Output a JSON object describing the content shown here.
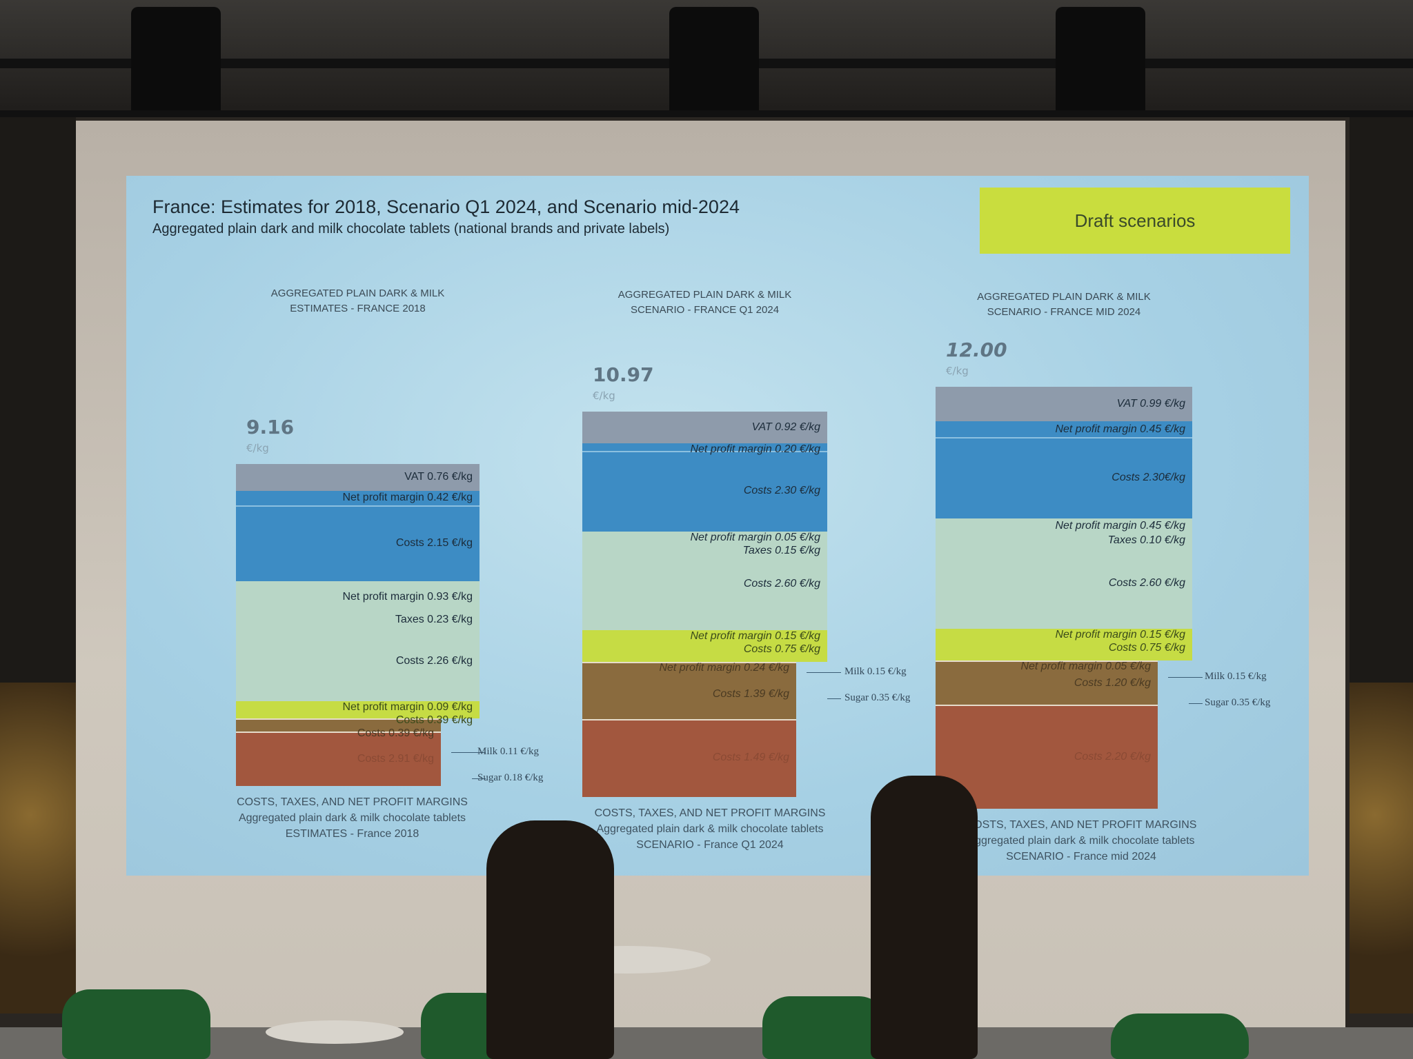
{
  "slide": {
    "title": "France: Estimates for 2018, Scenario Q1 2024, and Scenario mid-2024",
    "subtitle": "Aggregated plain dark and milk chocolate tablets (national brands and private labels)",
    "badge": "Draft scenarios",
    "colors": {
      "background": "#a8d2e6",
      "badge": "#c9dd3e",
      "vat": "#8e9bab",
      "retail": "#3d8cc4",
      "manufacturer": "#b8d6c6",
      "grinder": "#c6dc44",
      "trader": "#8a6b3e",
      "farm": "#a2573e"
    }
  },
  "chart_data": {
    "type": "bar",
    "stacked": true,
    "unit": "€/kg",
    "bars": [
      {
        "title_lines": [
          "AGGREGATED PLAIN DARK & MILK",
          "ESTIMATES - FRANCE 2018"
        ],
        "total": "9.16",
        "total_value": 9.16,
        "unit": "€/kg",
        "caption_lines": [
          "COSTS, TAXES, AND NET PROFIT MARGINS",
          "Aggregated plain dark & milk chocolate tablets",
          "ESTIMATES - France 2018"
        ],
        "groups": [
          {
            "color": "vat",
            "segments": [
              {
                "label": "VAT 0.76 €/kg",
                "value": 0.76
              }
            ]
          },
          {
            "color": "retail",
            "segments": [
              {
                "label": "Net profit margin 0.42 €/kg",
                "value": 0.42
              },
              {
                "label": "Costs 2.15 €/kg",
                "value": 2.15
              }
            ]
          },
          {
            "color": "manufacturer",
            "segments": [
              {
                "label": "Net profit margin 0.93 €/kg",
                "value": 0.93
              },
              {
                "label": "Taxes 0.23 €/kg",
                "value": 0.23
              },
              {
                "label": "Costs 2.26 €/kg",
                "value": 2.26
              }
            ]
          },
          {
            "color": "grinder",
            "segments": [
              {
                "label": "Net profit margin 0.09 €/kg",
                "value": 0.09
              },
              {
                "label": "Costs 0.39 €/kg",
                "value": 0.39
              }
            ]
          },
          {
            "color": "trader",
            "segments": [
              {
                "label": "Costs 0.39 €/kg",
                "value": 0.39
              }
            ]
          },
          {
            "color": "farm",
            "segments": [
              {
                "label": "Costs 2.91 €/kg",
                "value": null
              }
            ]
          }
        ],
        "annotations": [
          "Milk 0.11 €/kg",
          "Sugar 0.18 €/kg"
        ]
      },
      {
        "title_lines": [
          "AGGREGATED PLAIN DARK & MILK",
          "SCENARIO - FRANCE Q1 2024"
        ],
        "total": "10.97",
        "total_value": 10.97,
        "unit": "€/kg",
        "caption_lines": [
          "COSTS, TAXES, AND NET PROFIT MARGINS",
          "Aggregated plain dark & milk chocolate tablets",
          "SCENARIO - France Q1 2024"
        ],
        "groups": [
          {
            "color": "vat",
            "segments": [
              {
                "label": "VAT 0.92 €/kg",
                "value": 0.92
              }
            ]
          },
          {
            "color": "retail",
            "segments": [
              {
                "label": "Net profit margin 0.20 €/kg",
                "value": 0.2
              },
              {
                "label": "Costs 2.30 €/kg",
                "value": 2.3
              }
            ]
          },
          {
            "color": "manufacturer",
            "segments": [
              {
                "label": "Net profit margin 0.05 €/kg",
                "value": 0.05
              },
              {
                "label": "Taxes 0.15 €/kg",
                "value": 0.15
              },
              {
                "label": "Costs 2.60 €/kg",
                "value": 2.6
              }
            ]
          },
          {
            "color": "grinder",
            "segments": [
              {
                "label": "Net profit margin 0.15 €/kg",
                "value": 0.15
              },
              {
                "label": "Costs 0.75 €/kg",
                "value": 0.75
              }
            ]
          },
          {
            "color": "trader",
            "segments": [
              {
                "label": "Net profit margin 0.24 €/kg",
                "value": 0.24
              },
              {
                "label": "Costs 1.39 €/kg",
                "value": 1.39
              }
            ]
          },
          {
            "color": "farm",
            "segments": [
              {
                "label": "Costs 1.49 €/kg",
                "value": null
              }
            ]
          }
        ],
        "annotations": [
          "Milk 0.15 €/kg",
          "Sugar 0.35 €/kg"
        ]
      },
      {
        "title_lines": [
          "AGGREGATED PLAIN DARK & MILK",
          "SCENARIO - FRANCE MID 2024"
        ],
        "total": "12.00",
        "total_value": 12.0,
        "unit": "€/kg",
        "caption_lines": [
          "COSTS, TAXES, AND NET PROFIT MARGINS",
          "Aggregated plain dark & milk chocolate tablets",
          "SCENARIO - France mid 2024"
        ],
        "groups": [
          {
            "color": "vat",
            "segments": [
              {
                "label": "VAT 0.99 €/kg",
                "value": 0.99
              }
            ]
          },
          {
            "color": "retail",
            "segments": [
              {
                "label": "Net profit margin 0.45 €/kg",
                "value": 0.45
              },
              {
                "label": "Costs 2.30€/kg",
                "value": 2.3
              }
            ]
          },
          {
            "color": "manufacturer",
            "segments": [
              {
                "label": "Net profit margin 0.45 €/kg",
                "value": 0.45
              },
              {
                "label": "Taxes 0.10 €/kg",
                "value": 0.1
              },
              {
                "label": "Costs 2.60 €/kg",
                "value": 2.6
              }
            ]
          },
          {
            "color": "grinder",
            "segments": [
              {
                "label": "Net profit margin 0.15 €/kg",
                "value": 0.15
              },
              {
                "label": "Costs 0.75 €/kg",
                "value": 0.75
              }
            ]
          },
          {
            "color": "trader",
            "segments": [
              {
                "label": "Net profit margin 0.05 €/kg",
                "value": 0.05
              },
              {
                "label": "Costs 1.20 €/kg",
                "value": 1.2
              }
            ]
          },
          {
            "color": "farm",
            "segments": [
              {
                "label": "Costs 2.20 €/kg",
                "value": null
              }
            ]
          }
        ],
        "annotations": [
          "Milk 0.15 €/kg",
          "Sugar 0.35 €/kg"
        ]
      }
    ]
  }
}
